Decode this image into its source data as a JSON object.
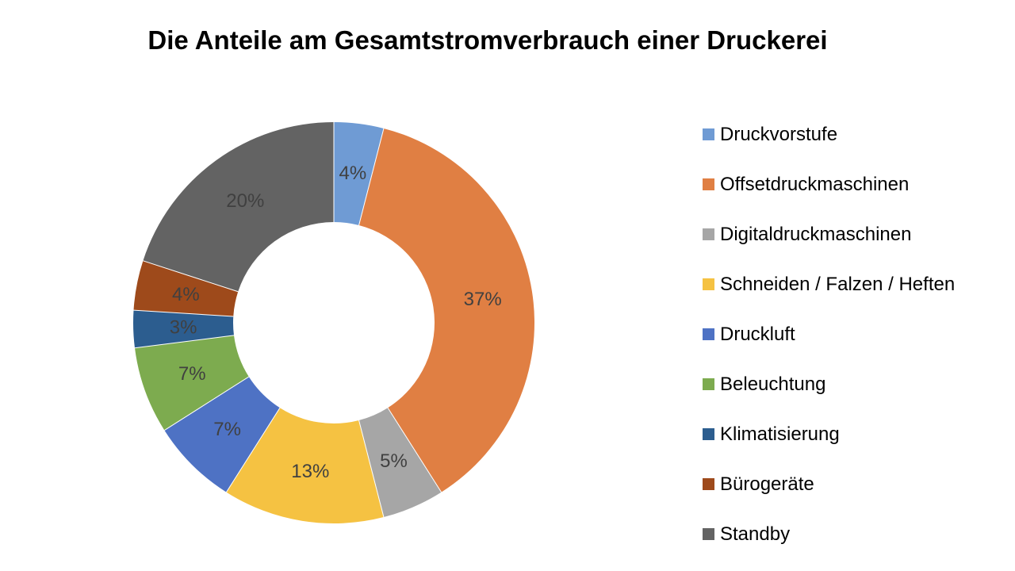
{
  "chart_data": {
    "type": "pie",
    "variant": "donut",
    "title": "Die Anteile am Gesamtstromverbrauch einer Druckerei",
    "legend_position": "right",
    "slices": [
      {
        "name": "Druckvorstufe",
        "value": 4,
        "label": "4%",
        "color": "#6f9bd4"
      },
      {
        "name": "Offsetdruckmaschinen",
        "value": 37,
        "label": "37%",
        "color": "#e07f43"
      },
      {
        "name": "Digitaldruckmaschinen",
        "value": 5,
        "label": "5%",
        "color": "#a6a6a6"
      },
      {
        "name": "Schneiden / Falzen / Heften",
        "value": 13,
        "label": "13%",
        "color": "#f5c242"
      },
      {
        "name": "Druckluft",
        "value": 7,
        "label": "7%",
        "color": "#4e72c4"
      },
      {
        "name": "Beleuchtung",
        "value": 7,
        "label": "7%",
        "color": "#7dab4f"
      },
      {
        "name": "Klimatisierung",
        "value": 3,
        "label": "3%",
        "color": "#2c5d8f"
      },
      {
        "name": "Bürogeräte",
        "value": 4,
        "label": "4%",
        "color": "#9e4a1b"
      },
      {
        "name": "Standby",
        "value": 20,
        "label": "20%",
        "color": "#636363"
      }
    ]
  }
}
